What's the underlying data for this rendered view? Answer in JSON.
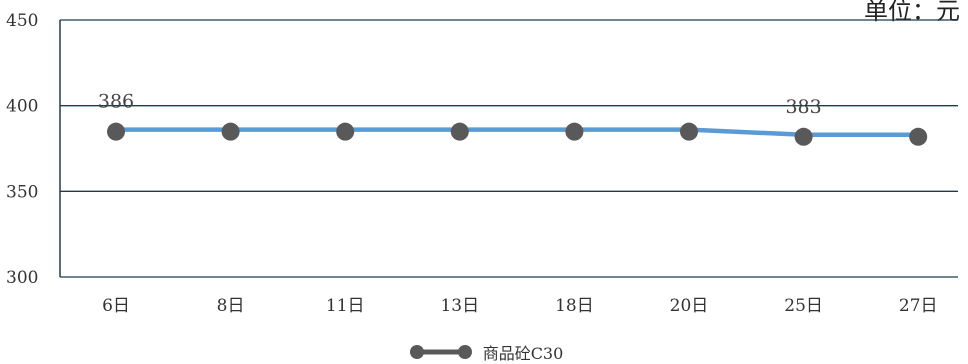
{
  "chart_data": {
    "type": "line",
    "unit_label": "单位：元",
    "categories": [
      "6日",
      "8日",
      "11日",
      "13日",
      "18日",
      "20日",
      "25日",
      "27日"
    ],
    "series": [
      {
        "name": "商品砼C30",
        "values": [
          386,
          386,
          386,
          386,
          386,
          386,
          383,
          383
        ],
        "line_color": "#5b9bd5",
        "marker_color": "#595959"
      }
    ],
    "data_labels": [
      {
        "index": 0,
        "text": "386"
      },
      {
        "index": 6,
        "text": "383"
      }
    ],
    "y_ticks": [
      "450",
      "400",
      "350",
      "300"
    ],
    "ylim": [
      300,
      450
    ],
    "grid": true,
    "legend_position": "bottom"
  }
}
